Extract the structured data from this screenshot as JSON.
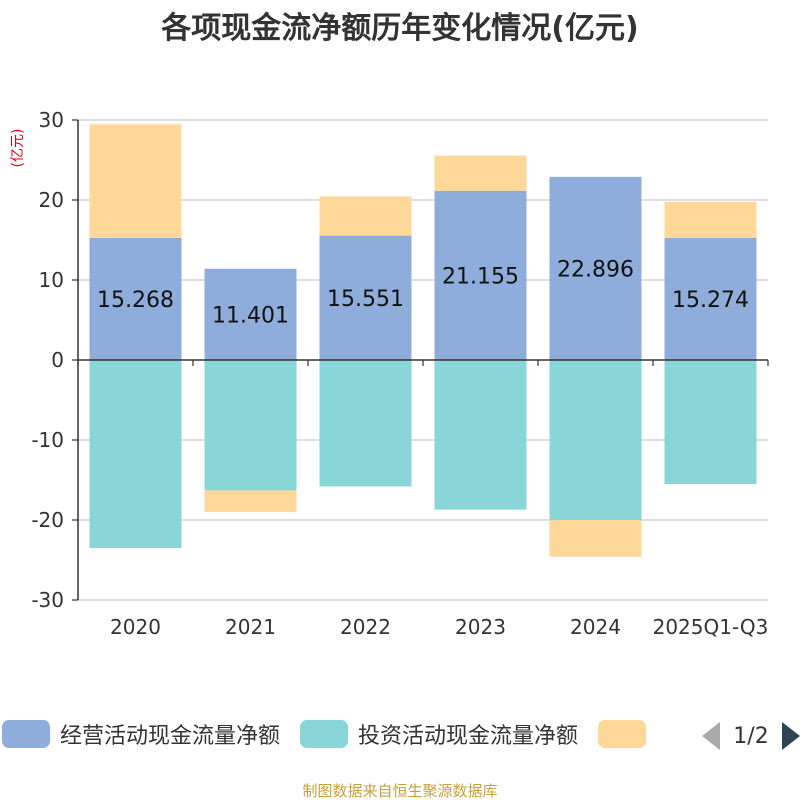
{
  "chart_data": {
    "type": "bar",
    "stacked": true,
    "title": "各项现金流净额历年变化情况(亿元)",
    "ylabel": "(亿元)",
    "xlabel": "",
    "categories": [
      "2020",
      "2021",
      "2022",
      "2023",
      "2024",
      "2025Q1-Q3"
    ],
    "ylim": [
      -30,
      30
    ],
    "yticks": [
      30,
      20,
      10,
      0,
      -10,
      -20,
      -30
    ],
    "series": [
      {
        "name": "经营活动现金流量净额",
        "color": "#8eaddb",
        "values": [
          15.268,
          11.401,
          15.551,
          21.155,
          22.896,
          15.274
        ],
        "show_labels": true
      },
      {
        "name": "投资活动现金流量净额",
        "color": "#88d6d7",
        "values": [
          -23.5,
          -16.3,
          -15.8,
          -18.7,
          -20.0,
          -15.5
        ],
        "show_labels": false
      },
      {
        "name": "",
        "color": "#fed898",
        "values": [
          14.2,
          -2.7,
          4.9,
          4.4,
          -4.6,
          4.5
        ],
        "show_labels": false
      }
    ],
    "legend": {
      "position": "bottom",
      "page": "1/2"
    }
  },
  "source_text": "制图数据来自恒生聚源数据库"
}
